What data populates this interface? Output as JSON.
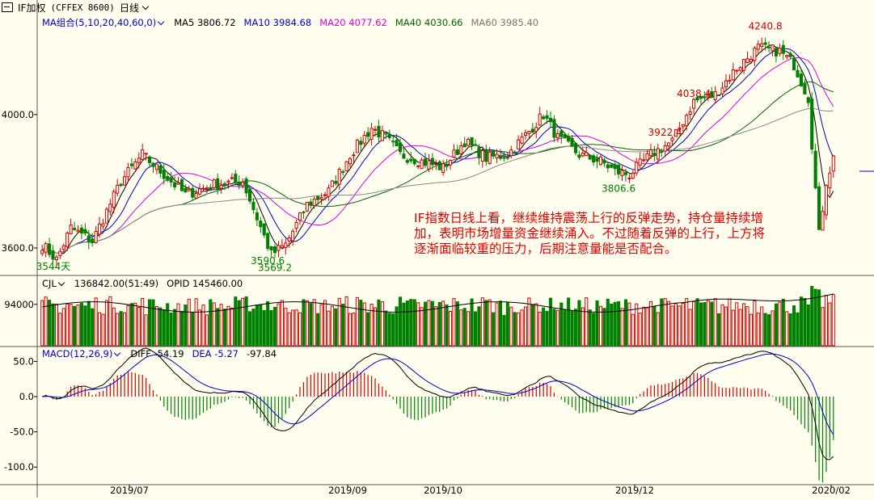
{
  "title": {
    "symbol": "IF加权",
    "code": "(CFFEX 8600)",
    "period": "日线"
  },
  "colors": {
    "up": "#d40000",
    "down": "#008000",
    "ma5": "#000000",
    "ma10": "#0000cc",
    "ma20": "#e000e0",
    "ma40": "#006600",
    "ma60": "#888888",
    "bg": "#fffdee"
  },
  "main_legend": {
    "group": "MA组合(5,10,20,40,60,0)",
    "ma5": "MA5 3806.72",
    "ma10": "MA10 3984.68",
    "ma20": "MA20 4077.62",
    "ma40": "MA40 4030.66",
    "ma60": "MA60 3985.40"
  },
  "vol_legend": {
    "name": "CJL",
    "cjl": "136842.00(51:49)",
    "opid": "OPID 145460.00"
  },
  "macd_legend": {
    "name": "MACD(12,26,9)",
    "diff": "DIFF -54.19",
    "dea": "DEA -5.27",
    "macd": "-97.84"
  },
  "comment": "IF指数日线上看，继续维持震荡上行的反弹走势，持仓量持续增加，表明市场增量资金继续涌入。不过随着反弹的上行，上方将逐渐面临较重的压力，后期注意量能是否配合。",
  "chart_data": [
    {
      "type": "candlestick",
      "panel": "price",
      "y_ticks": [
        "4000.0",
        "3600.0"
      ],
      "ylim": [
        3520,
        4300
      ],
      "annotations": [
        {
          "label": "3922.4",
          "value": 3922.4,
          "kind": "high"
        },
        {
          "label": "3569.2",
          "value": 3569.2,
          "kind": "low"
        },
        {
          "label": "4038.4",
          "value": 4038.4,
          "kind": "high"
        },
        {
          "label": "3806.6",
          "value": 3806.6,
          "kind": "low"
        },
        {
          "label": "4240.8",
          "value": 4240.8,
          "kind": "high"
        },
        {
          "label": "3590.6",
          "value": 3590.6,
          "kind": "low"
        },
        {
          "label": "3544天",
          "value": 3544,
          "kind": "low"
        }
      ],
      "anchors_close": [
        {
          "t": 0,
          "v": 3610
        },
        {
          "t": 4,
          "v": 3565
        },
        {
          "t": 8,
          "v": 3660
        },
        {
          "t": 14,
          "v": 3620
        },
        {
          "t": 22,
          "v": 3800
        },
        {
          "t": 28,
          "v": 3880
        },
        {
          "t": 32,
          "v": 3840
        },
        {
          "t": 40,
          "v": 3760
        },
        {
          "t": 48,
          "v": 3790
        },
        {
          "t": 56,
          "v": 3800
        },
        {
          "t": 60,
          "v": 3690
        },
        {
          "t": 64,
          "v": 3580
        },
        {
          "t": 68,
          "v": 3610
        },
        {
          "t": 74,
          "v": 3730
        },
        {
          "t": 80,
          "v": 3770
        },
        {
          "t": 86,
          "v": 3880
        },
        {
          "t": 92,
          "v": 3960
        },
        {
          "t": 96,
          "v": 3930
        },
        {
          "t": 100,
          "v": 3880
        },
        {
          "t": 106,
          "v": 3860
        },
        {
          "t": 112,
          "v": 3840
        },
        {
          "t": 118,
          "v": 3920
        },
        {
          "t": 124,
          "v": 3870
        },
        {
          "t": 130,
          "v": 3880
        },
        {
          "t": 136,
          "v": 3950
        },
        {
          "t": 140,
          "v": 4000
        },
        {
          "t": 144,
          "v": 3930
        },
        {
          "t": 150,
          "v": 3880
        },
        {
          "t": 156,
          "v": 3860
        },
        {
          "t": 160,
          "v": 3830
        },
        {
          "t": 164,
          "v": 3820
        },
        {
          "t": 170,
          "v": 3880
        },
        {
          "t": 176,
          "v": 3920
        },
        {
          "t": 182,
          "v": 4040
        },
        {
          "t": 188,
          "v": 4060
        },
        {
          "t": 194,
          "v": 4140
        },
        {
          "t": 200,
          "v": 4200
        },
        {
          "t": 206,
          "v": 4190
        },
        {
          "t": 210,
          "v": 4150
        },
        {
          "t": 214,
          "v": 4050
        },
        {
          "t": 217,
          "v": 3640
        },
        {
          "t": 219,
          "v": 3800
        },
        {
          "t": 221,
          "v": 3870
        }
      ],
      "ma_series": [
        "MA5",
        "MA10",
        "MA20",
        "MA40",
        "MA60"
      ]
    },
    {
      "type": "bar",
      "panel": "volume",
      "y_ticks": [
        "94000"
      ],
      "series": [
        {
          "name": "CJL"
        },
        {
          "name": "OPID"
        }
      ]
    },
    {
      "type": "bar+line",
      "panel": "macd",
      "y_ticks": [
        "50.0",
        "0.0",
        "-50.0",
        "-100.0"
      ],
      "ylim": [
        -125,
        70
      ],
      "series": [
        {
          "name": "DIFF"
        },
        {
          "name": "DEA"
        },
        {
          "name": "MACD"
        }
      ]
    }
  ],
  "x_labels": [
    "2019/07",
    "2019/09",
    "2019/10",
    "2019/12",
    "2020/02"
  ]
}
